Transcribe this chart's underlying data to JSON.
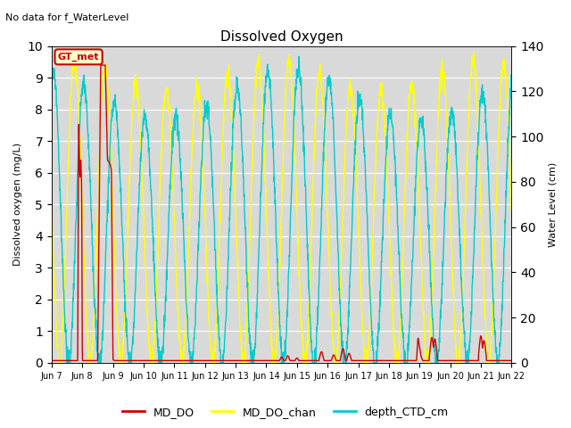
{
  "title": "Dissolved Oxygen",
  "top_left_text": "No data for f_WaterLevel",
  "ylabel_left": "Dissolved oxygen (mg/L)",
  "ylabel_right": "Water Level (cm)",
  "ylim_left": [
    0.0,
    10.0
  ],
  "ylim_right": [
    0,
    140
  ],
  "yticks_left": [
    0.0,
    1.0,
    2.0,
    3.0,
    4.0,
    5.0,
    6.0,
    7.0,
    8.0,
    9.0,
    10.0
  ],
  "yticks_right": [
    0,
    20,
    40,
    60,
    80,
    100,
    120,
    140
  ],
  "xtick_labels": [
    "Jun 7",
    "Jun 8",
    "Jun 9",
    "Jun 10",
    "Jun 11",
    "Jun 12",
    "Jun 13",
    "Jun 14",
    "Jun 15",
    "Jun 16",
    "Jun 17",
    "Jun 18",
    "Jun 19",
    "Jun 20",
    "Jun 21",
    "Jun 22"
  ],
  "legend_labels": [
    "MD_DO",
    "MD_DO_chan",
    "depth_CTD_cm"
  ],
  "legend_colors": [
    "#cc0000",
    "#ffff00",
    "#00cccc"
  ],
  "annotation_text": "GT_met",
  "annotation_facecolor": "#ffffcc",
  "annotation_edgecolor": "#cc0000",
  "background_color": "#d9d9d9",
  "color_MD_DO": "#cc0000",
  "color_MD_DO_chan": "#ffff00",
  "color_depth_CTD": "#00cccc",
  "linewidth": 1.0,
  "figsize": [
    6.4,
    4.8
  ],
  "dpi": 100
}
